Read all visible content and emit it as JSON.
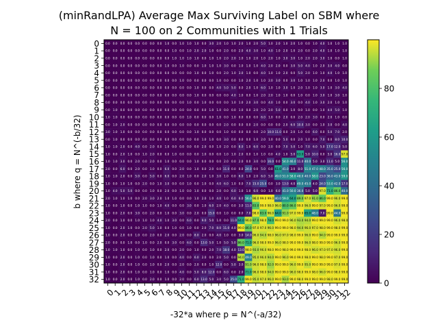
{
  "chart_data": {
    "type": "heatmap",
    "title_lines": [
      "(minRandLPA) Average Max Surviving Label on SBM where",
      "N = 100 on 2 Communities with 1 Trials"
    ],
    "xlabel": "-32*a where p = N^(-a/32)",
    "ylabel": "b where q = N^(-b/32)",
    "x_categories": [
      "0",
      "1",
      "2",
      "3",
      "4",
      "5",
      "6",
      "7",
      "8",
      "9",
      "10",
      "11",
      "12",
      "13",
      "14",
      "15",
      "16",
      "17",
      "18",
      "19",
      "20",
      "21",
      "22",
      "23",
      "24",
      "25",
      "26",
      "27",
      "28",
      "29",
      "30",
      "31",
      "32"
    ],
    "y_categories": [
      "0",
      "1",
      "2",
      "3",
      "4",
      "5",
      "6",
      "7",
      "8",
      "9",
      "10",
      "11",
      "12",
      "13",
      "14",
      "15",
      "16",
      "17",
      "18",
      "19",
      "20",
      "21",
      "22",
      "23",
      "24",
      "25",
      "26",
      "27",
      "28",
      "29",
      "30",
      "31",
      "32"
    ],
    "colorbar": {
      "colormap": "viridis",
      "vmin": 0,
      "vmax": 100,
      "ticks": [
        0,
        20,
        40,
        60,
        80
      ]
    },
    "values": [
      [
        0,
        0,
        0,
        0,
        0,
        0,
        0,
        0,
        1,
        0,
        1,
        1,
        1,
        0,
        3,
        2,
        1,
        1,
        2,
        1,
        2,
        5,
        1,
        2,
        1,
        2,
        1,
        0,
        1,
        4,
        1,
        1,
        1
      ],
      [
        0,
        0,
        0,
        0,
        0,
        0,
        0,
        0,
        0,
        1,
        0,
        1,
        2,
        2,
        1,
        0,
        2,
        0,
        2,
        4,
        3,
        1,
        4,
        1,
        2,
        1,
        2,
        0,
        2,
        4,
        1,
        1,
        1
      ],
      [
        0,
        0,
        0,
        0,
        0,
        0,
        0,
        0,
        0,
        1,
        1,
        1,
        1,
        0,
        1,
        1,
        2,
        2,
        1,
        1,
        2,
        1,
        2,
        1,
        3,
        3,
        1,
        2,
        2,
        3,
        1,
        0,
        1
      ],
      [
        0,
        0,
        0,
        0,
        0,
        0,
        0,
        0,
        1,
        0,
        1,
        0,
        0,
        1,
        1,
        1,
        3,
        0,
        1,
        1,
        1,
        4,
        2,
        2,
        0,
        3,
        5,
        4,
        1,
        2,
        3,
        4,
        0
      ],
      [
        0,
        0,
        0,
        0,
        0,
        0,
        0,
        0,
        0,
        0,
        0,
        0,
        1,
        0,
        1,
        0,
        2,
        1,
        3,
        1,
        0,
        4,
        1,
        1,
        2,
        0,
        5,
        2,
        1,
        1,
        4,
        1,
        1
      ],
      [
        0,
        0,
        0,
        0,
        0,
        0,
        0,
        0,
        0,
        0,
        1,
        0,
        0,
        0,
        0,
        1,
        0,
        0,
        1,
        2,
        1,
        1,
        2,
        3,
        0,
        3,
        1,
        1,
        1,
        2,
        0,
        1,
        1
      ],
      [
        0,
        0,
        0,
        0,
        0,
        0,
        0,
        0,
        0,
        0,
        0,
        0,
        1,
        0,
        0,
        4,
        5,
        5,
        0,
        2,
        1,
        6,
        1,
        1,
        3,
        1,
        2,
        1,
        1,
        3,
        1,
        3,
        4
      ],
      [
        0,
        0,
        0,
        0,
        0,
        0,
        0,
        0,
        0,
        0,
        0,
        0,
        1,
        0,
        0,
        0,
        0,
        4,
        1,
        0,
        1,
        2,
        2,
        1,
        1,
        0,
        1,
        0,
        1,
        3,
        1,
        3,
        1
      ],
      [
        0,
        0,
        0,
        0,
        0,
        0,
        0,
        0,
        0,
        0,
        0,
        1,
        0,
        1,
        0,
        0,
        0,
        1,
        1,
        2,
        3,
        0,
        4,
        1,
        0,
        3,
        0,
        4,
        1,
        3,
        2,
        1,
        1
      ],
      [
        0,
        1,
        0,
        0,
        0,
        0,
        0,
        0,
        0,
        0,
        0,
        0,
        0,
        0,
        1,
        1,
        0,
        0,
        1,
        0,
        2,
        2,
        2,
        5,
        0,
        1,
        0,
        1,
        0,
        1,
        4,
        5,
        1
      ],
      [
        1,
        1,
        0,
        0,
        0,
        0,
        0,
        0,
        0,
        0,
        0,
        1,
        0,
        0,
        0,
        1,
        0,
        1,
        0,
        0,
        0,
        6,
        1,
        0,
        2,
        0,
        2,
        2,
        3,
        0,
        2,
        1,
        0
      ],
      [
        0,
        1,
        2,
        0,
        0,
        0,
        0,
        0,
        0,
        0,
        0,
        0,
        0,
        0,
        0,
        0,
        2,
        0,
        0,
        0,
        2,
        0,
        0,
        0,
        2,
        6,
        10,
        3,
        0,
        1,
        3,
        0,
        4
      ],
      [
        3,
        1,
        1,
        0,
        0,
        0,
        0,
        0,
        0,
        0,
        0,
        0,
        1,
        0,
        0,
        0,
        1,
        0,
        0,
        0,
        0,
        2,
        10,
        11,
        0,
        2,
        1,
        0,
        6,
        0,
        5,
        7,
        2
      ],
      [
        0,
        1,
        0,
        0,
        0,
        0,
        0,
        0,
        0,
        0,
        0,
        0,
        0,
        1,
        1,
        0,
        3,
        0,
        0,
        0,
        1,
        2,
        1,
        0,
        5,
        0,
        2,
        1,
        0,
        7,
        0,
        8,
        10
      ],
      [
        1,
        1,
        2,
        0,
        4,
        0,
        2,
        0,
        1,
        0,
        0,
        0,
        0,
        2,
        0,
        1,
        2,
        0,
        8,
        1,
        6,
        0,
        2,
        0,
        7,
        5,
        1,
        7,
        6,
        5,
        17,
        12,
        5
      ],
      [
        1,
        0,
        2,
        1,
        0,
        1,
        2,
        0,
        0,
        1,
        0,
        0,
        0,
        1,
        0,
        0,
        1,
        1,
        2,
        0,
        1,
        1,
        0,
        4,
        1,
        5,
        63,
        5,
        10,
        0,
        5,
        16,
        97
      ],
      [
        1,
        1,
        3,
        0,
        2,
        0,
        2,
        0,
        1,
        0,
        0,
        0,
        1,
        0,
        0,
        0,
        2,
        0,
        2,
        0,
        3,
        0,
        16,
        0,
        54,
        46,
        11,
        40,
        5,
        3,
        11,
        5,
        56
      ],
      [
        2,
        0,
        6,
        0,
        2,
        0,
        1,
        0,
        6,
        0,
        2,
        0,
        1,
        0,
        2,
        0,
        11,
        0,
        0,
        24,
        0,
        5,
        0,
        61,
        41,
        3,
        8,
        51,
        47,
        48,
        35,
        25,
        56
      ],
      [
        1,
        1,
        2,
        0,
        5,
        0,
        5,
        0,
        6,
        0,
        2,
        1,
        0,
        2,
        1,
        3,
        1,
        0,
        6,
        1,
        2,
        6,
        5,
        49,
        51,
        58,
        48,
        40,
        58,
        23,
        36,
        43,
        59
      ],
      [
        1,
        0,
        1,
        1,
        0,
        2,
        0,
        1,
        3,
        0,
        0,
        1,
        0,
        1,
        0,
        4,
        6,
        1,
        0,
        7,
        15,
        25,
        0,
        3,
        13,
        4,
        49,
        45,
        4,
        24,
        53,
        42,
        17
      ],
      [
        1,
        4,
        5,
        5,
        0,
        0,
        1,
        0,
        2,
        0,
        1,
        0,
        1,
        0,
        0,
        2,
        0,
        6,
        1,
        1,
        6,
        0,
        1,
        6,
        41,
        50,
        36,
        5,
        5,
        97,
        71,
        86,
        40
      ],
      [
        2,
        1,
        1,
        1,
        0,
        2,
        3,
        2,
        1,
        1,
        0,
        0,
        1,
        2,
        1,
        4,
        1,
        6,
        6,
        56,
        96,
        99,
        99,
        40,
        59,
        64,
        89,
        97,
        91,
        86,
        99,
        96,
        99
      ],
      [
        1,
        0,
        1,
        0,
        1,
        1,
        0,
        1,
        4,
        0,
        0,
        3,
        0,
        1,
        6,
        2,
        4,
        0,
        3,
        11,
        83,
        99,
        98,
        96,
        80,
        86,
        99,
        96,
        99,
        97,
        99,
        96,
        99
      ],
      [
        1,
        0,
        2,
        0,
        3,
        0,
        2,
        0,
        1,
        0,
        3,
        0,
        2,
        0,
        15,
        0,
        1,
        0,
        0,
        7,
        98,
        83,
        96,
        64,
        91,
        97,
        99,
        65,
        48,
        7,
        99,
        44,
        99
      ],
      [
        2,
        0,
        1,
        0,
        1,
        1,
        1,
        4,
        1,
        3,
        0,
        6,
        0,
        9,
        5,
        1,
        0,
        11,
        64,
        96,
        87,
        98,
        78,
        99,
        99,
        96,
        93,
        94,
        99,
        99,
        99,
        96,
        98
      ],
      [
        1,
        0,
        2,
        1,
        0,
        2,
        5,
        1,
        0,
        1,
        0,
        1,
        0,
        2,
        7,
        8,
        11,
        4,
        99,
        86,
        97,
        97,
        96,
        99,
        99,
        98,
        94,
        96,
        97,
        98,
        99,
        98,
        99
      ],
      [
        1,
        0,
        2,
        0,
        1,
        0,
        2,
        0,
        2,
        0,
        2,
        0,
        8,
        2,
        0,
        4,
        1,
        0,
        3,
        14,
        96,
        94,
        98,
        96,
        97,
        98,
        99,
        96,
        99,
        94,
        99,
        99,
        99
      ],
      [
        2,
        0,
        0,
        1,
        0,
        1,
        0,
        2,
        0,
        3,
        0,
        6,
        0,
        13,
        5,
        1,
        5,
        5,
        86,
        71,
        96,
        98,
        99,
        96,
        98,
        99,
        99,
        96,
        98,
        99,
        99,
        96,
        99
      ],
      [
        1,
        1,
        1,
        0,
        1,
        0,
        1,
        0,
        2,
        0,
        2,
        0,
        1,
        0,
        2,
        7,
        18,
        4,
        13,
        98,
        93,
        96,
        98,
        99,
        98,
        99,
        99,
        98,
        96,
        97,
        97,
        96,
        99
      ],
      [
        1,
        0,
        2,
        0,
        1,
        0,
        1,
        0,
        1,
        0,
        4,
        0,
        6,
        2,
        0,
        2,
        5,
        0,
        94,
        49,
        95,
        96,
        94,
        99,
        96,
        99,
        99,
        98,
        99,
        98,
        99,
        97,
        99
      ],
      [
        1,
        0,
        2,
        0,
        1,
        0,
        1,
        0,
        2,
        0,
        2,
        0,
        2,
        0,
        1,
        12,
        0,
        5,
        3,
        91,
        96,
        98,
        92,
        99,
        99,
        96,
        99,
        95,
        99,
        99,
        99,
        97,
        99
      ],
      [
        1,
        0,
        2,
        0,
        1,
        0,
        1,
        0,
        1,
        0,
        4,
        0,
        5,
        8,
        12,
        0,
        6,
        0,
        2,
        71,
        96,
        98,
        94,
        99,
        99,
        96,
        98,
        99,
        98,
        96,
        99,
        98,
        99
      ],
      [
        1,
        0,
        2,
        0,
        1,
        0,
        2,
        0,
        1,
        0,
        2,
        0,
        6,
        13,
        5,
        3,
        5,
        25,
        71,
        99,
        95,
        97,
        96,
        99,
        93,
        99,
        98,
        99,
        99,
        99,
        98,
        99,
        99
      ]
    ]
  }
}
